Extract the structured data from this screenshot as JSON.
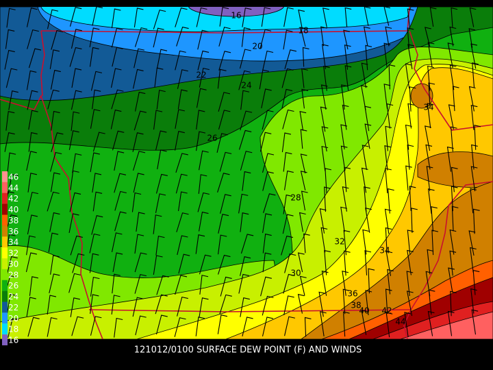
{
  "caption": "121012/0100 SURFACE DEW POINT (F) AND WINDS",
  "contour_labels": [
    16,
    18,
    20,
    22,
    24,
    26,
    28,
    30,
    32,
    34,
    34,
    36,
    38,
    40,
    42,
    44
  ],
  "colorbar": {
    "labels": [
      46,
      44,
      42,
      40,
      38,
      36,
      34,
      32,
      30,
      28,
      26,
      24,
      22,
      20,
      18,
      16
    ]
  }
}
